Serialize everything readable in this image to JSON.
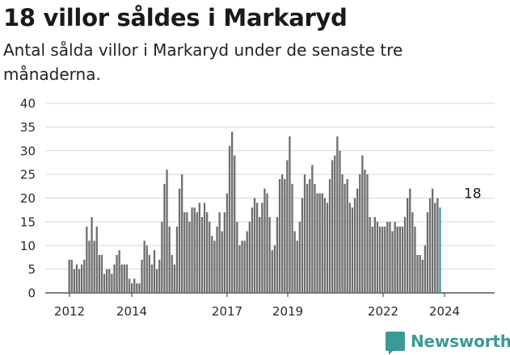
{
  "header": {
    "title": "18 villor såldes i Markaryd",
    "subtitle": "Antal sålda villor i Markaryd under de senaste tre månaderna."
  },
  "brand": {
    "name": "Newsworthy",
    "color": "#3a9a96"
  },
  "colors": {
    "bar": "#6e6e6e",
    "highlight": "#3a9a96",
    "grid": "#d6d6d6",
    "axis": "#333333"
  },
  "chart_data": {
    "type": "bar",
    "title": "18 villor såldes i Markaryd",
    "subtitle": "Antal sålda villor i Markaryd under de senaste tre månaderna.",
    "xlabel": "",
    "ylabel": "",
    "ylim": [
      0,
      40
    ],
    "yticks": [
      0,
      5,
      10,
      15,
      20,
      25,
      30,
      35,
      40
    ],
    "grid": true,
    "x_tick_labels": [
      "2012",
      "2014",
      "2017",
      "2019",
      "2022",
      "2024"
    ],
    "annotation": {
      "text": "18",
      "value": 18,
      "index": 161
    },
    "series": [
      {
        "values": [
          7,
          7,
          5,
          6,
          5,
          6,
          7,
          14,
          11,
          16,
          11,
          14,
          8,
          8,
          4,
          5,
          5,
          4,
          6,
          8,
          9,
          6,
          6,
          6,
          3,
          2,
          3,
          2,
          2,
          7,
          11,
          10,
          8,
          6,
          9,
          5,
          7,
          15,
          23,
          26,
          14,
          8,
          6,
          14,
          22,
          25,
          17,
          17,
          15,
          18,
          18,
          17,
          19,
          16,
          19,
          17,
          15,
          12,
          11,
          14,
          17,
          13,
          17,
          21,
          31,
          34,
          29,
          15,
          10,
          11,
          11,
          13,
          15,
          18,
          20,
          19,
          16,
          19,
          22,
          21,
          16,
          9,
          10,
          16,
          24,
          25,
          24,
          28,
          33,
          23,
          13,
          11,
          15,
          20,
          25,
          23,
          24,
          27,
          23,
          21,
          21,
          21,
          20,
          19,
          24,
          28,
          29,
          33,
          30,
          25,
          23,
          24,
          19,
          18,
          20,
          22,
          25,
          29,
          26,
          25,
          16,
          14,
          16,
          15,
          14,
          14,
          14,
          15,
          15,
          13,
          15,
          14,
          14,
          14,
          16,
          20,
          22,
          17,
          14,
          8,
          8,
          7,
          10,
          17,
          20,
          22,
          19,
          20,
          18
        ]
      }
    ],
    "highlight_last_n": 1
  }
}
